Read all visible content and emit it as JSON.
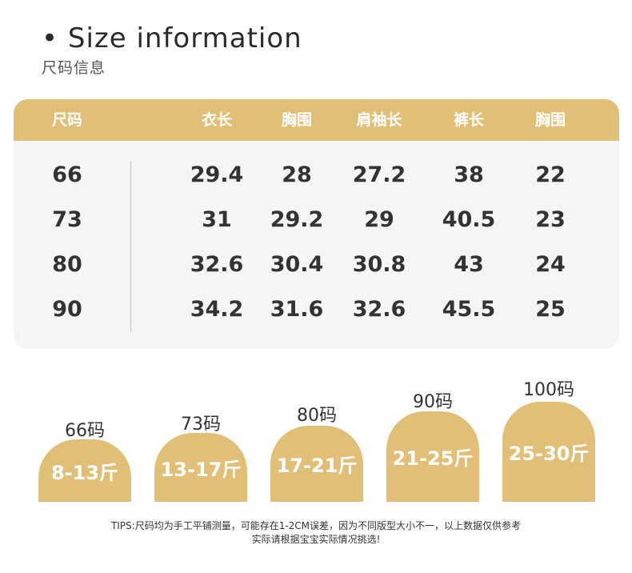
{
  "header": {
    "title": "• Size information",
    "subtitle": "尺码信息"
  },
  "colors": {
    "accent": "#e2bf77",
    "table_background": "#f5f5f5",
    "text": "#333333"
  },
  "table": {
    "columns": [
      "尺码",
      "衣长",
      "胸围",
      "肩袖长",
      "裤长",
      "胸围"
    ],
    "rows": [
      [
        "66",
        "29.4",
        "28",
        "27.2",
        "38",
        "22"
      ],
      [
        "73",
        "31",
        "29.2",
        "29",
        "40.5",
        "23"
      ],
      [
        "80",
        "32.6",
        "30.4",
        "30.8",
        "43",
        "24"
      ],
      [
        "90",
        "34.2",
        "31.6",
        "32.6",
        "45.5",
        "25"
      ]
    ]
  },
  "badges": [
    {
      "size": "66码",
      "weight": "8-13斤"
    },
    {
      "size": "73码",
      "weight": "13-17斤"
    },
    {
      "size": "80码",
      "weight": "17-21斤"
    },
    {
      "size": "90码",
      "weight": "21-25斤"
    },
    {
      "size": "100码",
      "weight": "25-30斤"
    }
  ],
  "tips": {
    "line1": "TIPS:尺码均为手工平铺测量，可能存在1-2CM误差，因为不同版型大小不一，以上数据仅供参考",
    "line2": "实际请根据宝宝实际情况挑选!"
  }
}
